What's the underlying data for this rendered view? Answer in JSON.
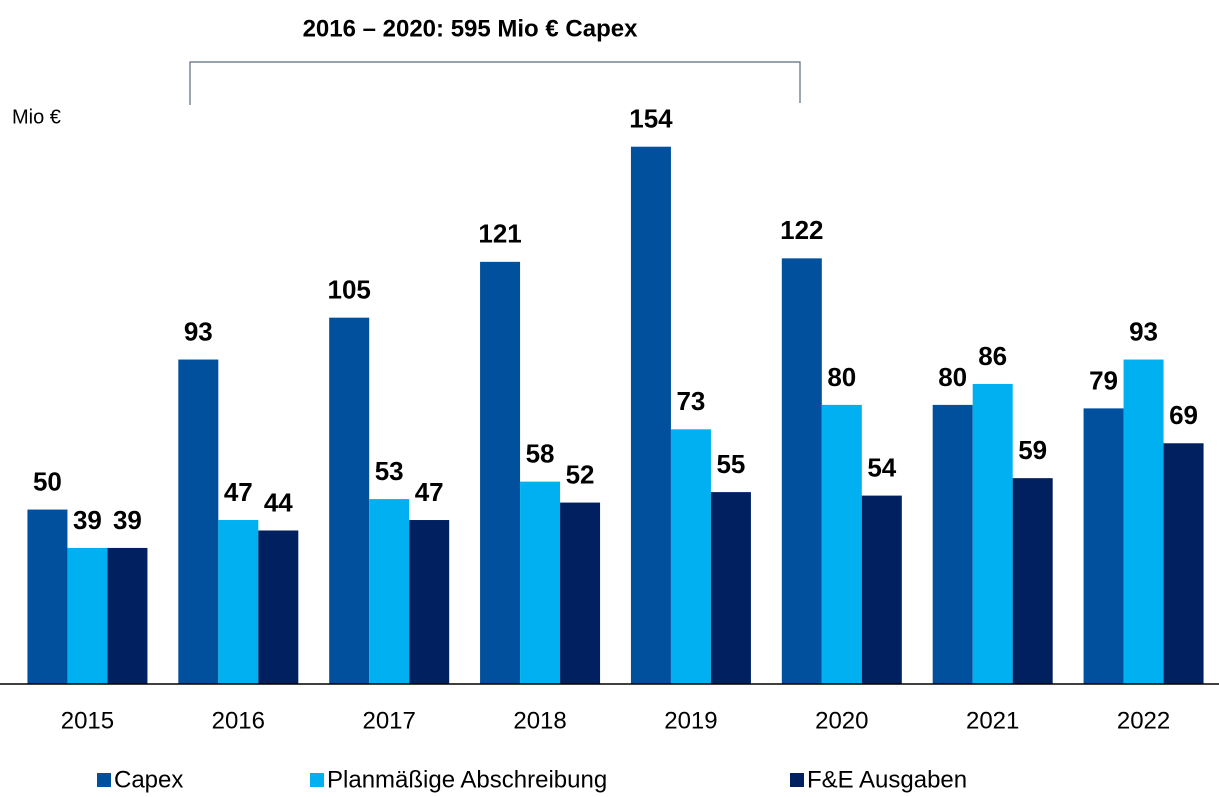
{
  "chart_data": {
    "type": "bar",
    "title": "2016 – 2020: 595 Mio € Capex",
    "y_label": "Mio €",
    "categories": [
      "2015",
      "2016",
      "2017",
      "2018",
      "2019",
      "2020",
      "2021",
      "2022"
    ],
    "series": [
      {
        "name": "Capex",
        "color": "#00509e",
        "values": [
          50,
          93,
          105,
          121,
          154,
          122,
          80,
          79
        ]
      },
      {
        "name": "Planmäßige Abschreibung",
        "color": "#00b0f0",
        "values": [
          39,
          47,
          53,
          58,
          73,
          80,
          86,
          93
        ]
      },
      {
        "name": "F&E Ausgaben",
        "color": "#002060",
        "values": [
          39,
          44,
          47,
          52,
          55,
          54,
          59,
          69
        ]
      }
    ],
    "ylim": [
      0,
      180
    ]
  }
}
